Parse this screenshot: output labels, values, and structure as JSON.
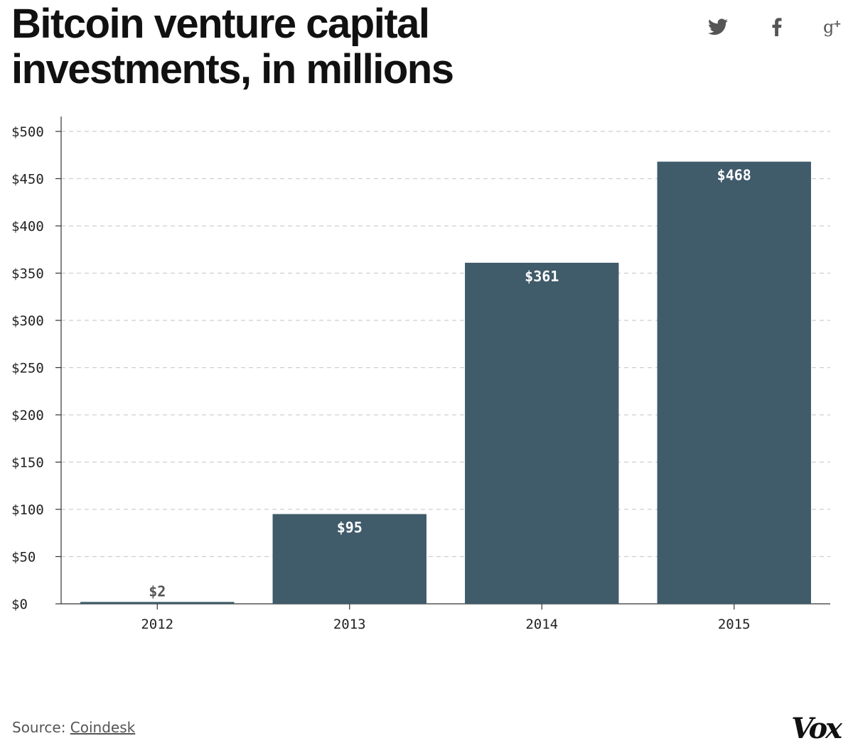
{
  "header": {
    "title": "Bitcoin venture capital investments, in millions"
  },
  "share": {
    "twitter_icon": "twitter-icon",
    "facebook_icon": "facebook-icon",
    "googleplus_icon": "google-plus-icon",
    "icon_color": "#555555"
  },
  "chart_data": {
    "type": "bar",
    "title": "Bitcoin venture capital investments, in millions",
    "xlabel": "",
    "ylabel": "",
    "categories": [
      "2012",
      "2013",
      "2014",
      "2015"
    ],
    "values": [
      2,
      95,
      361,
      468
    ],
    "value_labels": [
      "$2",
      "$95",
      "$361",
      "$468"
    ],
    "ylim": [
      0,
      500
    ],
    "yticks": [
      0,
      50,
      100,
      150,
      200,
      250,
      300,
      350,
      400,
      450,
      500
    ],
    "ytick_labels": [
      "$0",
      "$50",
      "$100",
      "$150",
      "$200",
      "$250",
      "$300",
      "$350",
      "$400",
      "$450",
      "$500"
    ],
    "grid": true,
    "bar_color": "#405b6a",
    "label_color_inside": "#ffffff",
    "label_color_outside": "#555555"
  },
  "footer": {
    "source_prefix": "Source: ",
    "source_link": "Coindesk",
    "logo": "Vox"
  }
}
